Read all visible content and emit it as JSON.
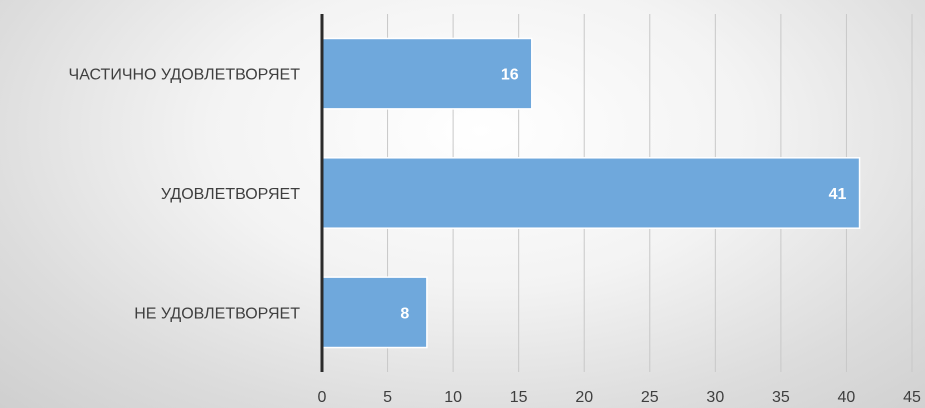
{
  "chart_data": {
    "type": "bar",
    "orientation": "horizontal",
    "title": "",
    "xlabel": "",
    "ylabel": "",
    "categories": [
      "ЧАСТИЧНО УДОВЛЕТВОРЯЕТ",
      "УДОВЛЕТВОРЯЕТ",
      "НЕ УДОВЛЕТВОРЯЕТ"
    ],
    "values": [
      16,
      41,
      8
    ],
    "data_labels": [
      "16",
      "41",
      "8"
    ],
    "xlim": [
      0,
      45
    ],
    "x_ticks": [
      0,
      5,
      10,
      15,
      20,
      25,
      30,
      35,
      40,
      45
    ],
    "x_tick_labels": [
      "0",
      "5",
      "10",
      "15",
      "20",
      "25",
      "30",
      "35",
      "40",
      "45"
    ],
    "grid": true,
    "legend": "none",
    "colors": {
      "bar_fill": "#6fa8dc",
      "bar_stroke": "#ffffff",
      "axis": "#2b2b2b",
      "grid": "#c8c8c8",
      "data_label": "#ffffff",
      "text": "#3f3f3f"
    }
  }
}
